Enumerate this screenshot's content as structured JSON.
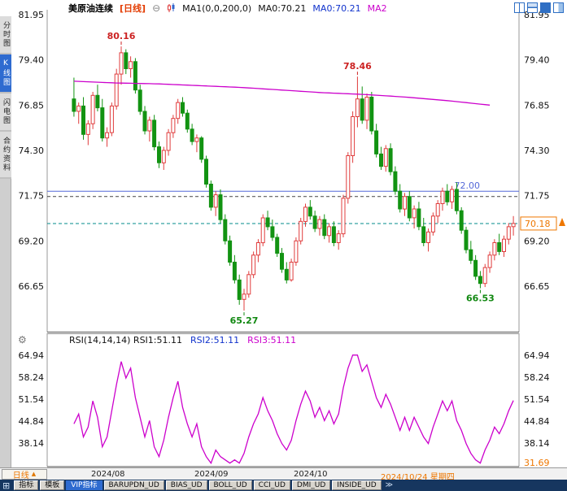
{
  "header": {
    "symbol": "美原油连续",
    "period_tag": "[日线]",
    "ma_settings": "MA1(0,0,200,0)",
    "ma0_black": "MA0:70.21",
    "ma0_blue": "MA0:70.21",
    "ma2": "MA2"
  },
  "icons": {
    "minus_circle": "⊖",
    "gear": "⚙",
    "grid": "⊞",
    "more_tabs": "≫",
    "triangle_up": "▲"
  },
  "sidebar": {
    "items": [
      {
        "label": "分时图",
        "active": false
      },
      {
        "label": "K线图",
        "active": true
      },
      {
        "label": "闪电图",
        "active": false
      },
      {
        "label": "合约资料",
        "active": false
      }
    ]
  },
  "rsi_header": {
    "main": "RSI(14,14,14) RSI1:51.11",
    "rsi2": "RSI2:51.11",
    "rsi3": "RSI3:51.11"
  },
  "time_axis": {
    "period_label": "日线",
    "labels": [
      "2024/08",
      "2024/09",
      "2024/10"
    ],
    "cursor_date": "2024/10/24 星期四"
  },
  "bottom_bar": {
    "tabs": [
      {
        "label": "指标",
        "active": false
      },
      {
        "label": "模板",
        "active": false
      },
      {
        "label": "VIP指标",
        "active": true
      },
      {
        "label": "BARUPDN_UD",
        "active": false
      },
      {
        "label": "BIAS_UD",
        "active": false
      },
      {
        "label": "BOLL_UD",
        "active": false
      },
      {
        "label": "CCI_UD",
        "active": false
      },
      {
        "label": "DMI_UD",
        "active": false
      },
      {
        "label": "INSIDE_UD",
        "active": false
      }
    ]
  },
  "colors": {
    "up": "#e03c3c",
    "down": "#129312",
    "ma": "#cc00cc",
    "rsi": "#cc00cc",
    "level_blue": "#5468d8",
    "grid_dashed": "#444444",
    "teal_dashed": "#008b8b",
    "orange": "#ee7700",
    "annotation_red": "#cc2222",
    "annotation_green": "#118811",
    "axis_text": "#111111"
  },
  "chart_data": [
    {
      "type": "candlestick",
      "title": "美原油连续 日线",
      "y_ticks": [
        "81.95",
        "79.40",
        "76.85",
        "74.30",
        "71.75",
        "69.20",
        "66.65"
      ],
      "hlines": [
        {
          "price": 72.0,
          "label": "72.00",
          "style": "solid",
          "color_key": "level_blue"
        },
        {
          "price": 71.7,
          "label": "",
          "style": "dashed",
          "color_key": "grid_dashed"
        },
        {
          "price": 70.18,
          "label": "",
          "style": "dashed",
          "color_key": "teal_dashed"
        }
      ],
      "last_price": {
        "price": 70.18,
        "label": "70.18"
      },
      "annotations": [
        {
          "text": "80.16",
          "index": 10,
          "price": 80.16,
          "pos": "above",
          "color_key": "annotation_red"
        },
        {
          "text": "78.46",
          "index": 60,
          "price": 78.46,
          "pos": "above",
          "color_key": "annotation_red"
        },
        {
          "text": "65.27",
          "index": 36,
          "price": 65.27,
          "pos": "below",
          "color_key": "annotation_green"
        },
        {
          "text": "66.53",
          "index": 86,
          "price": 66.53,
          "pos": "below",
          "color_key": "annotation_green"
        }
      ],
      "ma200": [
        78.2,
        78.1,
        78.05,
        77.95,
        77.85,
        77.7,
        77.55,
        77.45,
        77.3,
        77.1,
        76.85
      ],
      "candles": [
        [
          77.2,
          78.4,
          76.2,
          76.5
        ],
        [
          76.5,
          77.0,
          75.8,
          76.8
        ],
        [
          76.8,
          77.3,
          74.9,
          75.2
        ],
        [
          75.2,
          76.0,
          74.6,
          75.8
        ],
        [
          75.8,
          77.6,
          75.5,
          77.4
        ],
        [
          77.4,
          78.0,
          76.5,
          76.7
        ],
        [
          76.7,
          77.2,
          74.8,
          75.0
        ],
        [
          75.0,
          75.6,
          74.5,
          75.3
        ],
        [
          75.3,
          77.0,
          75.1,
          76.8
        ],
        [
          76.8,
          78.9,
          76.6,
          78.6
        ],
        [
          78.6,
          80.16,
          78.0,
          79.8
        ],
        [
          79.8,
          80.0,
          78.6,
          78.9
        ],
        [
          78.9,
          79.6,
          78.4,
          79.3
        ],
        [
          79.3,
          79.5,
          77.5,
          77.7
        ],
        [
          77.7,
          78.0,
          76.3,
          76.5
        ],
        [
          76.5,
          76.8,
          75.2,
          75.4
        ],
        [
          75.4,
          76.2,
          74.8,
          76.0
        ],
        [
          76.0,
          76.3,
          74.3,
          74.5
        ],
        [
          74.5,
          74.8,
          73.3,
          73.6
        ],
        [
          73.6,
          74.5,
          73.2,
          74.3
        ],
        [
          74.3,
          75.5,
          74.0,
          75.3
        ],
        [
          75.3,
          76.3,
          75.0,
          76.1
        ],
        [
          76.1,
          77.2,
          75.8,
          77.0
        ],
        [
          77.0,
          77.3,
          76.2,
          76.4
        ],
        [
          76.4,
          76.6,
          75.3,
          75.5
        ],
        [
          75.5,
          75.8,
          74.6,
          74.8
        ],
        [
          74.8,
          75.2,
          74.2,
          75.0
        ],
        [
          75.0,
          75.1,
          73.6,
          73.8
        ],
        [
          73.8,
          74.0,
          72.2,
          72.4
        ],
        [
          72.4,
          72.6,
          70.9,
          71.1
        ],
        [
          71.1,
          72.0,
          70.6,
          71.8
        ],
        [
          71.8,
          72.1,
          70.2,
          70.4
        ],
        [
          70.4,
          70.7,
          69.0,
          69.2
        ],
        [
          69.2,
          69.5,
          67.8,
          68.0
        ],
        [
          68.0,
          68.4,
          66.8,
          67.0
        ],
        [
          67.0,
          67.3,
          65.6,
          65.9
        ],
        [
          65.9,
          66.5,
          65.27,
          66.2
        ],
        [
          66.2,
          67.5,
          66.0,
          67.3
        ],
        [
          67.3,
          68.6,
          67.1,
          68.4
        ],
        [
          68.4,
          69.3,
          68.0,
          69.1
        ],
        [
          69.1,
          70.7,
          68.9,
          70.5
        ],
        [
          70.5,
          70.9,
          69.8,
          70.0
        ],
        [
          70.0,
          70.4,
          69.2,
          69.4
        ],
        [
          69.4,
          69.6,
          68.3,
          68.5
        ],
        [
          68.5,
          68.8,
          67.4,
          67.6
        ],
        [
          67.6,
          68.0,
          66.8,
          67.0
        ],
        [
          67.0,
          68.2,
          66.9,
          68.0
        ],
        [
          68.0,
          69.4,
          67.8,
          69.2
        ],
        [
          69.2,
          70.5,
          69.0,
          70.3
        ],
        [
          70.3,
          71.3,
          70.0,
          71.1
        ],
        [
          71.1,
          71.5,
          70.4,
          70.6
        ],
        [
          70.6,
          70.9,
          69.7,
          69.9
        ],
        [
          69.9,
          70.6,
          69.5,
          70.4
        ],
        [
          70.4,
          70.7,
          69.3,
          69.5
        ],
        [
          69.5,
          70.2,
          69.1,
          70.0
        ],
        [
          70.0,
          70.3,
          68.9,
          69.1
        ],
        [
          69.1,
          69.8,
          68.7,
          69.6
        ],
        [
          69.6,
          71.8,
          69.4,
          71.6
        ],
        [
          71.6,
          74.2,
          71.3,
          74.0
        ],
        [
          74.0,
          76.5,
          73.6,
          76.2
        ],
        [
          76.2,
          78.46,
          75.6,
          77.2
        ],
        [
          77.2,
          77.9,
          75.8,
          76.0
        ],
        [
          76.0,
          77.5,
          75.5,
          77.3
        ],
        [
          77.3,
          77.6,
          75.2,
          75.4
        ],
        [
          75.4,
          75.8,
          73.9,
          74.1
        ],
        [
          74.1,
          74.5,
          73.2,
          73.4
        ],
        [
          73.4,
          74.6,
          73.1,
          74.4
        ],
        [
          74.4,
          74.7,
          72.9,
          73.1
        ],
        [
          73.1,
          73.4,
          71.8,
          72.0
        ],
        [
          72.0,
          72.4,
          70.8,
          71.0
        ],
        [
          71.0,
          71.9,
          70.6,
          71.7
        ],
        [
          71.7,
          72.0,
          70.3,
          70.5
        ],
        [
          70.5,
          71.2,
          69.9,
          71.0
        ],
        [
          71.0,
          71.4,
          69.8,
          70.0
        ],
        [
          70.0,
          70.5,
          68.9,
          69.1
        ],
        [
          69.1,
          69.9,
          68.6,
          69.7
        ],
        [
          69.7,
          70.8,
          69.5,
          70.6
        ],
        [
          70.6,
          71.5,
          70.2,
          71.3
        ],
        [
          71.3,
          72.2,
          70.9,
          72.0
        ],
        [
          72.0,
          72.4,
          71.2,
          71.4
        ],
        [
          71.4,
          72.3,
          71.0,
          72.1
        ],
        [
          72.1,
          72.5,
          70.7,
          70.9
        ],
        [
          70.9,
          71.1,
          69.6,
          69.8
        ],
        [
          69.8,
          70.0,
          68.5,
          68.7
        ],
        [
          68.7,
          69.2,
          67.9,
          68.1
        ],
        [
          68.1,
          68.4,
          67.0,
          67.2
        ],
        [
          67.2,
          67.5,
          66.53,
          66.8
        ],
        [
          66.8,
          67.9,
          66.6,
          67.7
        ],
        [
          67.7,
          68.6,
          67.4,
          68.4
        ],
        [
          68.4,
          69.3,
          68.1,
          69.1
        ],
        [
          69.1,
          69.6,
          68.4,
          68.6
        ],
        [
          68.6,
          69.5,
          68.3,
          69.3
        ],
        [
          69.3,
          70.2,
          69.0,
          70.0
        ],
        [
          70.0,
          70.6,
          69.5,
          70.18
        ]
      ]
    },
    {
      "type": "line",
      "name": "RSI",
      "y_ticks": [
        "64.94",
        "58.24",
        "51.54",
        "44.84",
        "38.14"
      ],
      "y_min_label": "31.69",
      "last_value": 51.11,
      "values": [
        44,
        47,
        40,
        43,
        51,
        46,
        37,
        40,
        48,
        56,
        63,
        58,
        61,
        52,
        46,
        40,
        45,
        37,
        34,
        39,
        46,
        52,
        57,
        49,
        44,
        40,
        44,
        37,
        34,
        32,
        36,
        34,
        33,
        32,
        33,
        32,
        35,
        40,
        44,
        47,
        52,
        48,
        45,
        41,
        38,
        36,
        39,
        45,
        50,
        54,
        51,
        46,
        49,
        45,
        48,
        44,
        47,
        55,
        61,
        65,
        65,
        60,
        62,
        57,
        52,
        49,
        53,
        50,
        46,
        42,
        46,
        42,
        46,
        43,
        40,
        38,
        43,
        47,
        51,
        48,
        51,
        45,
        42,
        38,
        35,
        33,
        32,
        36,
        39,
        43,
        41,
        44,
        48,
        51.11
      ]
    }
  ]
}
